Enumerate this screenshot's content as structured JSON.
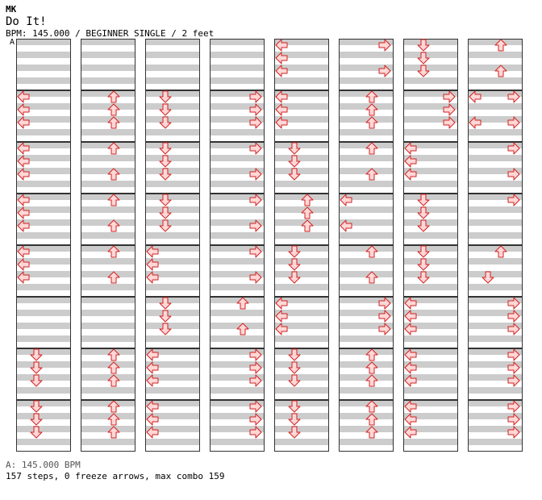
{
  "header": {
    "artist": "MK",
    "title": "Do It!",
    "info": "BPM: 145.000 / BEGINNER SINGLE / 2 feet",
    "bpm_marker": "A"
  },
  "footer": {
    "bpm": "A: 145.000 BPM",
    "summary": "157 steps, 0 freeze arrows, max combo 159"
  },
  "colors": {
    "stripe": "#cccccc",
    "border": "#333333",
    "arrow_fill": "#ffd7d7",
    "arrow_stroke": "#d22222",
    "bpm_line": "#3366cc"
  },
  "chart_data": {
    "type": "table",
    "description_of_cells": "Each measure lists up to four rows of steps; each step is a list of arrow directions (L, D, U, R).",
    "measures": [
      [
        [],
        [],
        [],
        []
      ],
      [
        [
          "L"
        ],
        [
          "L"
        ],
        [
          "L"
        ],
        []
      ],
      [
        [
          "L"
        ],
        [
          "L"
        ],
        [
          "L"
        ],
        []
      ],
      [
        [
          "L"
        ],
        [
          "L"
        ],
        [
          "L"
        ],
        []
      ],
      [
        [
          "L"
        ],
        [
          "L"
        ],
        [
          "L"
        ],
        []
      ],
      [
        [],
        [],
        [],
        []
      ],
      [
        [
          "D"
        ],
        [
          "D"
        ],
        [
          "D"
        ],
        []
      ],
      [
        [
          "D"
        ],
        [
          "D"
        ],
        [
          "D"
        ],
        []
      ],
      [
        [],
        [],
        [],
        []
      ],
      [
        [
          "U"
        ],
        [
          "U"
        ],
        [
          "U"
        ],
        []
      ],
      [
        [
          "U"
        ],
        [],
        [
          "U"
        ],
        []
      ],
      [
        [
          "U"
        ],
        [],
        [
          "U"
        ],
        []
      ],
      [
        [
          "U"
        ],
        [],
        [
          "U"
        ],
        []
      ],
      [
        [],
        [],
        [],
        []
      ],
      [
        [
          "U"
        ],
        [
          "U"
        ],
        [
          "U"
        ],
        []
      ],
      [
        [
          "U"
        ],
        [
          "U"
        ],
        [
          "U"
        ],
        []
      ],
      [
        [],
        [],
        [],
        []
      ],
      [
        [
          "D"
        ],
        [
          "D"
        ],
        [
          "D"
        ],
        []
      ],
      [
        [
          "D"
        ],
        [
          "D"
        ],
        [
          "D"
        ],
        []
      ],
      [
        [
          "D"
        ],
        [
          "D"
        ],
        [
          "D"
        ],
        []
      ],
      [
        [
          "L"
        ],
        [
          "L"
        ],
        [
          "L"
        ],
        []
      ],
      [
        [
          "D"
        ],
        [
          "D"
        ],
        [
          "D"
        ],
        []
      ],
      [
        [
          "L"
        ],
        [
          "L"
        ],
        [
          "L"
        ],
        []
      ],
      [
        [
          "L"
        ],
        [
          "L"
        ],
        [
          "L"
        ],
        []
      ],
      [
        [],
        [],
        [],
        []
      ],
      [
        [
          "R"
        ],
        [
          "R"
        ],
        [
          "R"
        ],
        []
      ],
      [
        [
          "R"
        ],
        [],
        [
          "R"
        ],
        []
      ],
      [
        [
          "R"
        ],
        [],
        [
          "R"
        ],
        []
      ],
      [
        [
          "R"
        ],
        [],
        [
          "R"
        ],
        []
      ],
      [
        [
          "U"
        ],
        [],
        [
          "U"
        ],
        []
      ],
      [
        [
          "R"
        ],
        [
          "R"
        ],
        [
          "R"
        ],
        []
      ],
      [
        [
          "R"
        ],
        [
          "R"
        ],
        [
          "R"
        ],
        []
      ],
      [
        [
          "L"
        ],
        [
          "L"
        ],
        [
          "L"
        ],
        []
      ],
      [
        [
          "L"
        ],
        [
          "L"
        ],
        [
          "L"
        ],
        []
      ],
      [
        [
          "D"
        ],
        [
          "D"
        ],
        [
          "D"
        ],
        []
      ],
      [
        [
          "U"
        ],
        [
          "U"
        ],
        [
          "U"
        ],
        []
      ],
      [
        [
          "D"
        ],
        [
          "D"
        ],
        [
          "D"
        ],
        []
      ],
      [
        [
          "L"
        ],
        [
          "L"
        ],
        [
          "L"
        ],
        []
      ],
      [
        [
          "D"
        ],
        [
          "D"
        ],
        [
          "D"
        ],
        []
      ],
      [
        [
          "D"
        ],
        [
          "D"
        ],
        [
          "D"
        ],
        []
      ],
      [
        [
          "R"
        ],
        [],
        [
          "R"
        ],
        []
      ],
      [
        [
          "U"
        ],
        [
          "U"
        ],
        [
          "U"
        ],
        []
      ],
      [
        [
          "U"
        ],
        [],
        [
          "U"
        ],
        []
      ],
      [
        [
          "L"
        ],
        [],
        [
          "L"
        ],
        []
      ],
      [
        [
          "U"
        ],
        [],
        [
          "U"
        ],
        []
      ],
      [
        [
          "R"
        ],
        [
          "R"
        ],
        [
          "R"
        ],
        []
      ],
      [
        [
          "U"
        ],
        [
          "U"
        ],
        [
          "U"
        ],
        []
      ],
      [
        [
          "U"
        ],
        [
          "U"
        ],
        [
          "U"
        ],
        []
      ],
      [
        [
          "D"
        ],
        [
          "D"
        ],
        [
          "D"
        ],
        []
      ],
      [
        [
          "R"
        ],
        [
          "R"
        ],
        [
          "R"
        ],
        []
      ],
      [
        [
          "L"
        ],
        [
          "L"
        ],
        [
          "L"
        ],
        []
      ],
      [
        [
          "D"
        ],
        [
          "D"
        ],
        [
          "D"
        ],
        []
      ],
      [
        [
          "D"
        ],
        [
          "D"
        ],
        [
          "D"
        ],
        []
      ],
      [
        [
          "L"
        ],
        [
          "L"
        ],
        [
          "L"
        ],
        []
      ],
      [
        [
          "L"
        ],
        [
          "L"
        ],
        [
          "L"
        ],
        []
      ],
      [
        [
          "L"
        ],
        [
          "L"
        ],
        [
          "L"
        ],
        []
      ],
      [
        [
          "U"
        ],
        [],
        [
          "U"
        ],
        []
      ],
      [
        [
          "LR"
        ],
        [],
        [
          "LR"
        ],
        []
      ],
      [
        [
          "R"
        ],
        [],
        [
          "R"
        ],
        []
      ],
      [
        [
          "R"
        ],
        [],
        [],
        []
      ],
      [
        [
          "U"
        ],
        [],
        [
          "D"
        ],
        []
      ],
      [
        [
          "R"
        ],
        [
          "R"
        ],
        [
          "R"
        ],
        []
      ],
      [
        [
          "R"
        ],
        [
          "R"
        ],
        [
          "R"
        ],
        []
      ],
      [
        [
          "R"
        ],
        [
          "R"
        ],
        [
          "R"
        ],
        []
      ]
    ]
  }
}
